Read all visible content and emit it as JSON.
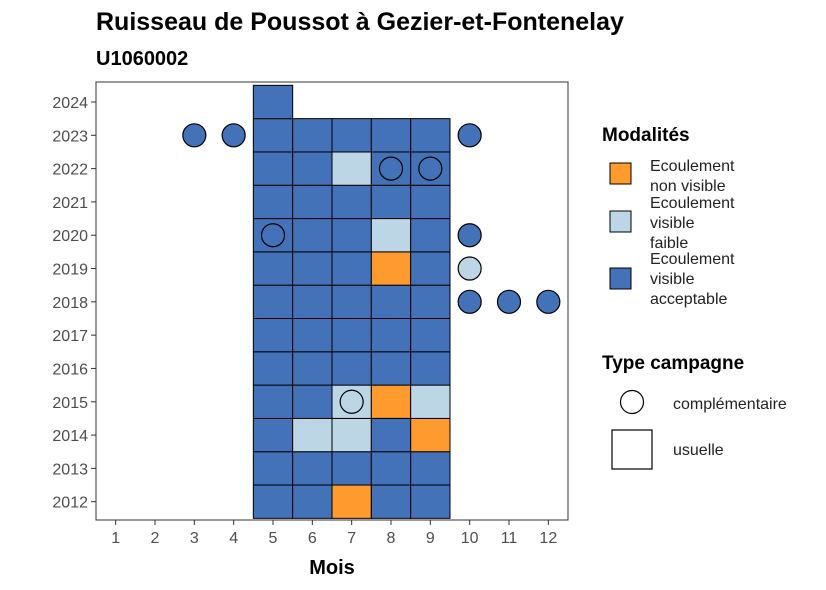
{
  "colors": {
    "Ecoulement non visible": "#FF9A2E",
    "Ecoulement visible faible": "#BCD6E6",
    "Ecoulement visible acceptable": "#4472B8"
  },
  "chart_data": {
    "type": "heatmap",
    "title": "Ruisseau de Poussot à Gezier-et-Fontenelay",
    "subtitle": "U1060002",
    "xlabel": "Mois",
    "ylabel": "",
    "x_ticks": [
      "1",
      "2",
      "3",
      "4",
      "5",
      "6",
      "7",
      "8",
      "9",
      "10",
      "11",
      "12"
    ],
    "y_ticks": [
      "2012",
      "2013",
      "2014",
      "2015",
      "2016",
      "2017",
      "2018",
      "2019",
      "2020",
      "2021",
      "2022",
      "2023",
      "2024"
    ],
    "xlim": [
      0.5,
      12.5
    ],
    "ylim": [
      2011.45,
      2024.6
    ],
    "grid": false,
    "usuelle": [
      {
        "year": 2012,
        "months": [
          5,
          6,
          7,
          8,
          9
        ],
        "values": [
          "acceptable",
          "acceptable",
          "non",
          "acceptable",
          "acceptable"
        ]
      },
      {
        "year": 2013,
        "months": [
          5,
          6,
          7,
          8,
          9
        ],
        "values": [
          "acceptable",
          "acceptable",
          "acceptable",
          "acceptable",
          "acceptable"
        ]
      },
      {
        "year": 2014,
        "months": [
          5,
          6,
          7,
          8,
          9
        ],
        "values": [
          "acceptable",
          "faible",
          "faible",
          "acceptable",
          "non"
        ]
      },
      {
        "year": 2015,
        "months": [
          5,
          6,
          7,
          8,
          9
        ],
        "values": [
          "acceptable",
          "acceptable",
          "faible",
          "non",
          "faible"
        ]
      },
      {
        "year": 2016,
        "months": [
          5,
          6,
          7,
          8,
          9
        ],
        "values": [
          "acceptable",
          "acceptable",
          "acceptable",
          "acceptable",
          "acceptable"
        ]
      },
      {
        "year": 2017,
        "months": [
          5,
          6,
          7,
          8,
          9
        ],
        "values": [
          "acceptable",
          "acceptable",
          "acceptable",
          "acceptable",
          "acceptable"
        ]
      },
      {
        "year": 2018,
        "months": [
          5,
          6,
          7,
          8,
          9
        ],
        "values": [
          "acceptable",
          "acceptable",
          "acceptable",
          "acceptable",
          "acceptable"
        ]
      },
      {
        "year": 2019,
        "months": [
          5,
          6,
          7,
          8,
          9
        ],
        "values": [
          "acceptable",
          "acceptable",
          "acceptable",
          "non",
          "acceptable"
        ]
      },
      {
        "year": 2020,
        "months": [
          5,
          6,
          7,
          8,
          9
        ],
        "values": [
          "acceptable",
          "acceptable",
          "acceptable",
          "faible",
          "acceptable"
        ]
      },
      {
        "year": 2021,
        "months": [
          5,
          6,
          7,
          8,
          9
        ],
        "values": [
          "acceptable",
          "acceptable",
          "acceptable",
          "acceptable",
          "acceptable"
        ]
      },
      {
        "year": 2022,
        "months": [
          5,
          6,
          7,
          8,
          9
        ],
        "values": [
          "acceptable",
          "acceptable",
          "faible",
          "acceptable",
          "acceptable"
        ]
      },
      {
        "year": 2023,
        "months": [
          5,
          6,
          7,
          8,
          9
        ],
        "values": [
          "acceptable",
          "acceptable",
          "acceptable",
          "acceptable",
          "acceptable"
        ]
      },
      {
        "year": 2024,
        "months": [
          5
        ],
        "values": [
          "acceptable"
        ]
      }
    ],
    "complementaire": [
      {
        "year": 2023,
        "month": 3,
        "value": "acceptable"
      },
      {
        "year": 2023,
        "month": 4,
        "value": "acceptable"
      },
      {
        "year": 2023,
        "month": 10,
        "value": "acceptable"
      },
      {
        "year": 2022,
        "month": 8,
        "value": "acceptable"
      },
      {
        "year": 2022,
        "month": 9,
        "value": "acceptable"
      },
      {
        "year": 2020,
        "month": 5,
        "value": "acceptable"
      },
      {
        "year": 2020,
        "month": 10,
        "value": "acceptable"
      },
      {
        "year": 2019,
        "month": 10,
        "value": "faible"
      },
      {
        "year": 2018,
        "month": 10,
        "value": "acceptable"
      },
      {
        "year": 2018,
        "month": 11,
        "value": "acceptable"
      },
      {
        "year": 2018,
        "month": 12,
        "value": "acceptable"
      },
      {
        "year": 2015,
        "month": 7,
        "value": "faible"
      }
    ],
    "legend": {
      "position": "right",
      "modalites_title": "Modalités",
      "modalites": [
        {
          "key": "non",
          "lines": [
            "Ecoulement",
            "non visible"
          ],
          "color": "#FF9A2E"
        },
        {
          "key": "faible",
          "lines": [
            "Ecoulement",
            "visible",
            "faible"
          ],
          "color": "#BCD6E6"
        },
        {
          "key": "acceptable",
          "lines": [
            "Ecoulement",
            "visible",
            "acceptable"
          ],
          "color": "#4472B8"
        }
      ],
      "type_title": "Type campagne",
      "types": [
        {
          "key": "complementaire",
          "label": "complémentaire"
        },
        {
          "key": "usuelle",
          "label": "usuelle"
        }
      ]
    }
  }
}
